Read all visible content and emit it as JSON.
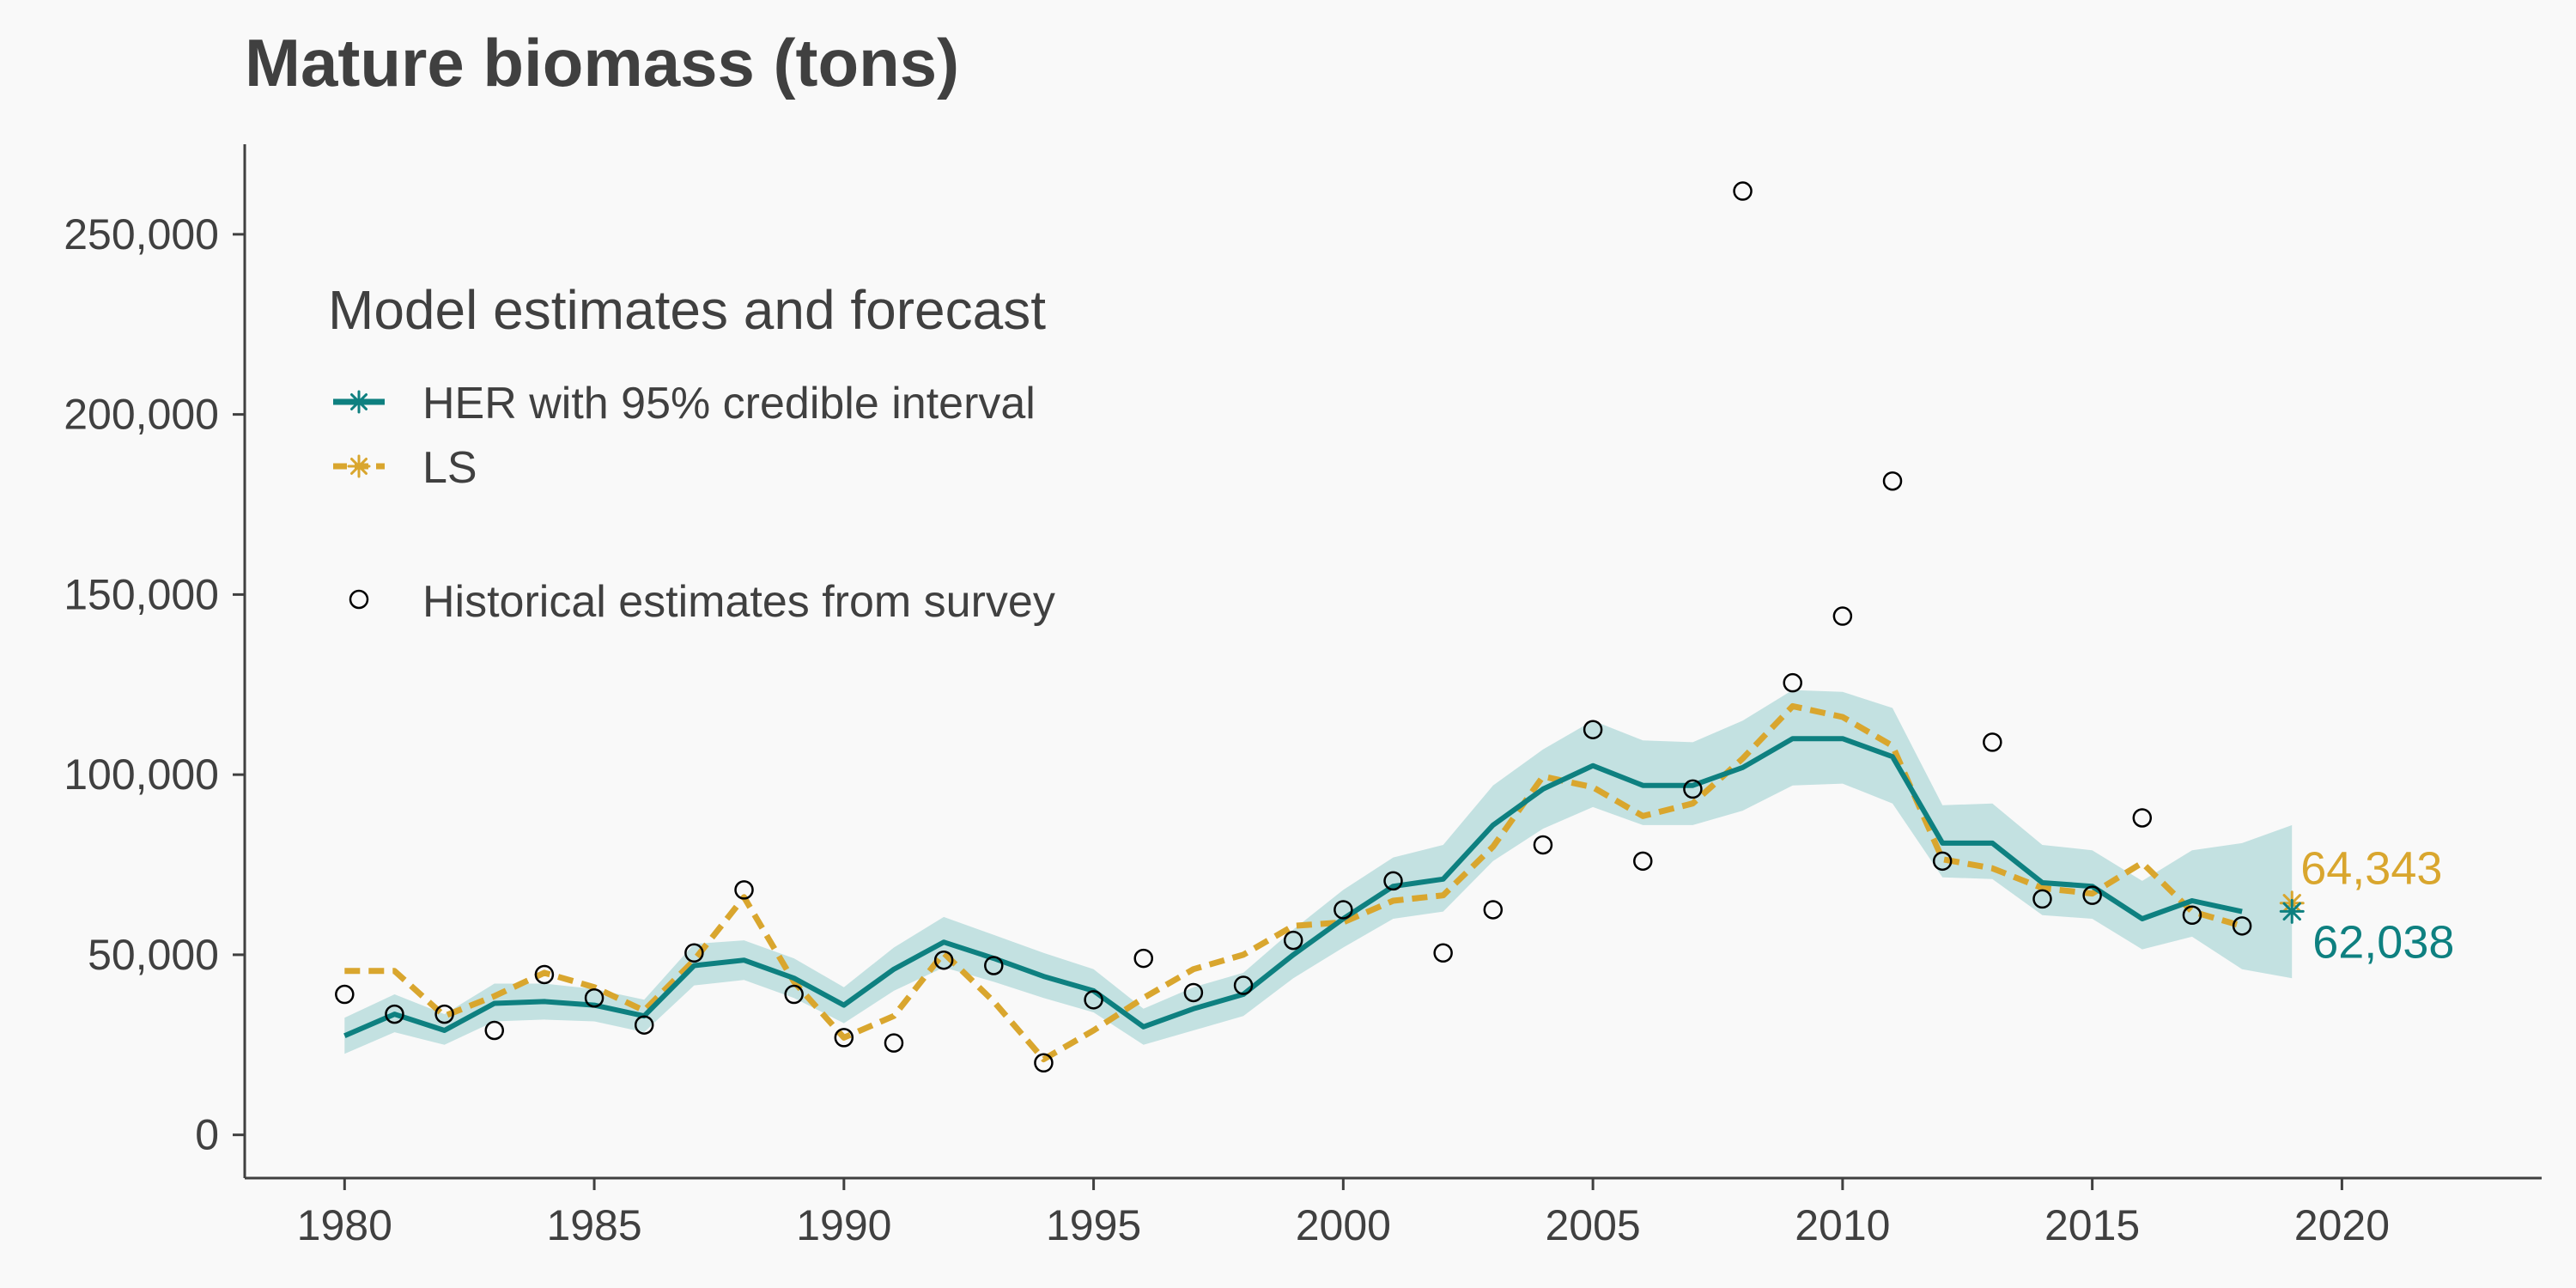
{
  "chart_data": {
    "type": "line",
    "title": "Mature biomass (tons)",
    "xlabel": "",
    "ylabel": "",
    "xlim": [
      1978,
      2024
    ],
    "ylim": [
      -12000,
      275000
    ],
    "x_ticks": [
      1980,
      1985,
      1990,
      1995,
      2000,
      2005,
      2010,
      2015,
      2020
    ],
    "x_tick_labels": [
      "1980",
      "1985",
      "1990",
      "1995",
      "2000",
      "2005",
      "2010",
      "2015",
      "2020"
    ],
    "y_ticks": [
      0,
      50000,
      100000,
      150000,
      200000,
      250000
    ],
    "y_tick_labels": [
      "0",
      "50,000",
      "100,000",
      "150,000",
      "200,000",
      "250,000"
    ],
    "grid": false,
    "legend": {
      "title": "Model estimates and forecast",
      "placement": "top-left",
      "items": [
        "HER with 95% credible interval",
        "LS",
        "Historical estimates from survey"
      ]
    },
    "colors": {
      "her": "#0e8080",
      "her_band": "#c3e1e1",
      "ls": "#d9a62e",
      "survey": "#000000",
      "axis": "#404040"
    },
    "series": [
      {
        "name": "HER with 95% credible interval",
        "style": "solid",
        "x": [
          1980,
          1981,
          1982,
          1983,
          1984,
          1985,
          1986,
          1987,
          1988,
          1989,
          1990,
          1991,
          1992,
          1993,
          1994,
          1995,
          1996,
          1997,
          1998,
          1999,
          2000,
          2001,
          2002,
          2003,
          2004,
          2005,
          2006,
          2007,
          2008,
          2009,
          2010,
          2011,
          2012,
          2013,
          2014,
          2015,
          2016,
          2017,
          2018
        ],
        "values": [
          27500,
          33500,
          29000,
          36500,
          37000,
          36000,
          33000,
          47000,
          48500,
          43500,
          36000,
          46000,
          53500,
          49000,
          44000,
          40000,
          30000,
          35000,
          39000,
          50000,
          60000,
          69000,
          71000,
          86000,
          96000,
          102500,
          97000,
          97000,
          102000,
          110000,
          110000,
          105000,
          81000,
          81000,
          70000,
          69000,
          60000,
          65000,
          62000
        ],
        "lower": [
          22500,
          28500,
          25000,
          31500,
          32000,
          31500,
          28500,
          41500,
          43000,
          38000,
          31000,
          40000,
          46500,
          42500,
          38000,
          34000,
          25000,
          29000,
          33000,
          43500,
          52000,
          60000,
          62000,
          76000,
          85000,
          91000,
          86000,
          86000,
          90000,
          97000,
          97500,
          92000,
          71500,
          71000,
          61000,
          60000,
          51500,
          55000,
          46000
        ],
        "upper": [
          32500,
          39000,
          33500,
          42000,
          42000,
          40500,
          37500,
          53000,
          54000,
          49000,
          41000,
          52000,
          60500,
          55500,
          50500,
          46000,
          35000,
          41000,
          45000,
          57000,
          68000,
          77000,
          80500,
          97000,
          107000,
          115000,
          109500,
          109000,
          115000,
          123500,
          123000,
          118500,
          91500,
          92000,
          80500,
          79000,
          70500,
          79000,
          81000
        ]
      },
      {
        "name": "LS",
        "style": "dashed",
        "x": [
          1980,
          1981,
          1982,
          1983,
          1984,
          1985,
          1986,
          1987,
          1988,
          1989,
          1990,
          1991,
          1992,
          1993,
          1994,
          1995,
          1996,
          1997,
          1998,
          1999,
          2000,
          2001,
          2002,
          2003,
          2004,
          2005,
          2006,
          2007,
          2008,
          2009,
          2010,
          2011,
          2012,
          2013,
          2014,
          2015,
          2016,
          2017,
          2018
        ],
        "values": [
          45500,
          45500,
          33000,
          38500,
          45000,
          41000,
          34500,
          48500,
          66000,
          42500,
          27000,
          33000,
          50500,
          37000,
          21000,
          29000,
          38000,
          46000,
          50000,
          58000,
          59000,
          65000,
          66500,
          80000,
          99500,
          96500,
          88500,
          92000,
          104500,
          119000,
          116000,
          108000,
          76500,
          74000,
          68500,
          67000,
          75500,
          62000,
          58000
        ]
      }
    ],
    "survey": {
      "name": "Historical estimates from survey",
      "x": [
        1980,
        1981,
        1982,
        1983,
        1984,
        1985,
        1986,
        1987,
        1988,
        1989,
        1990,
        1991,
        1992,
        1993,
        1994,
        1995,
        1996,
        1997,
        1998,
        1999,
        2000,
        2001,
        2002,
        2003,
        2004,
        2005,
        2006,
        2007,
        2008,
        2009,
        2010,
        2011,
        2012,
        2013,
        2014,
        2015,
        2016,
        2017,
        2018
      ],
      "values": [
        39000,
        33500,
        33500,
        29000,
        44500,
        38000,
        30500,
        50500,
        68000,
        39000,
        27000,
        25500,
        48500,
        47000,
        20000,
        37500,
        49000,
        39500,
        41500,
        54000,
        62500,
        70500,
        50500,
        62500,
        80500,
        112500,
        76000,
        96000,
        262000,
        125500,
        144000,
        181500,
        76000,
        109000,
        65500,
        66500,
        88000,
        61000,
        58000
      ]
    },
    "forecast": [
      {
        "series": "HER with 95% credible interval",
        "x": 2019,
        "value": 62038,
        "label": "62,038",
        "lower": 43500,
        "upper": 86000
      },
      {
        "series": "LS",
        "x": 2019,
        "value": 64343,
        "label": "64,343"
      }
    ]
  }
}
